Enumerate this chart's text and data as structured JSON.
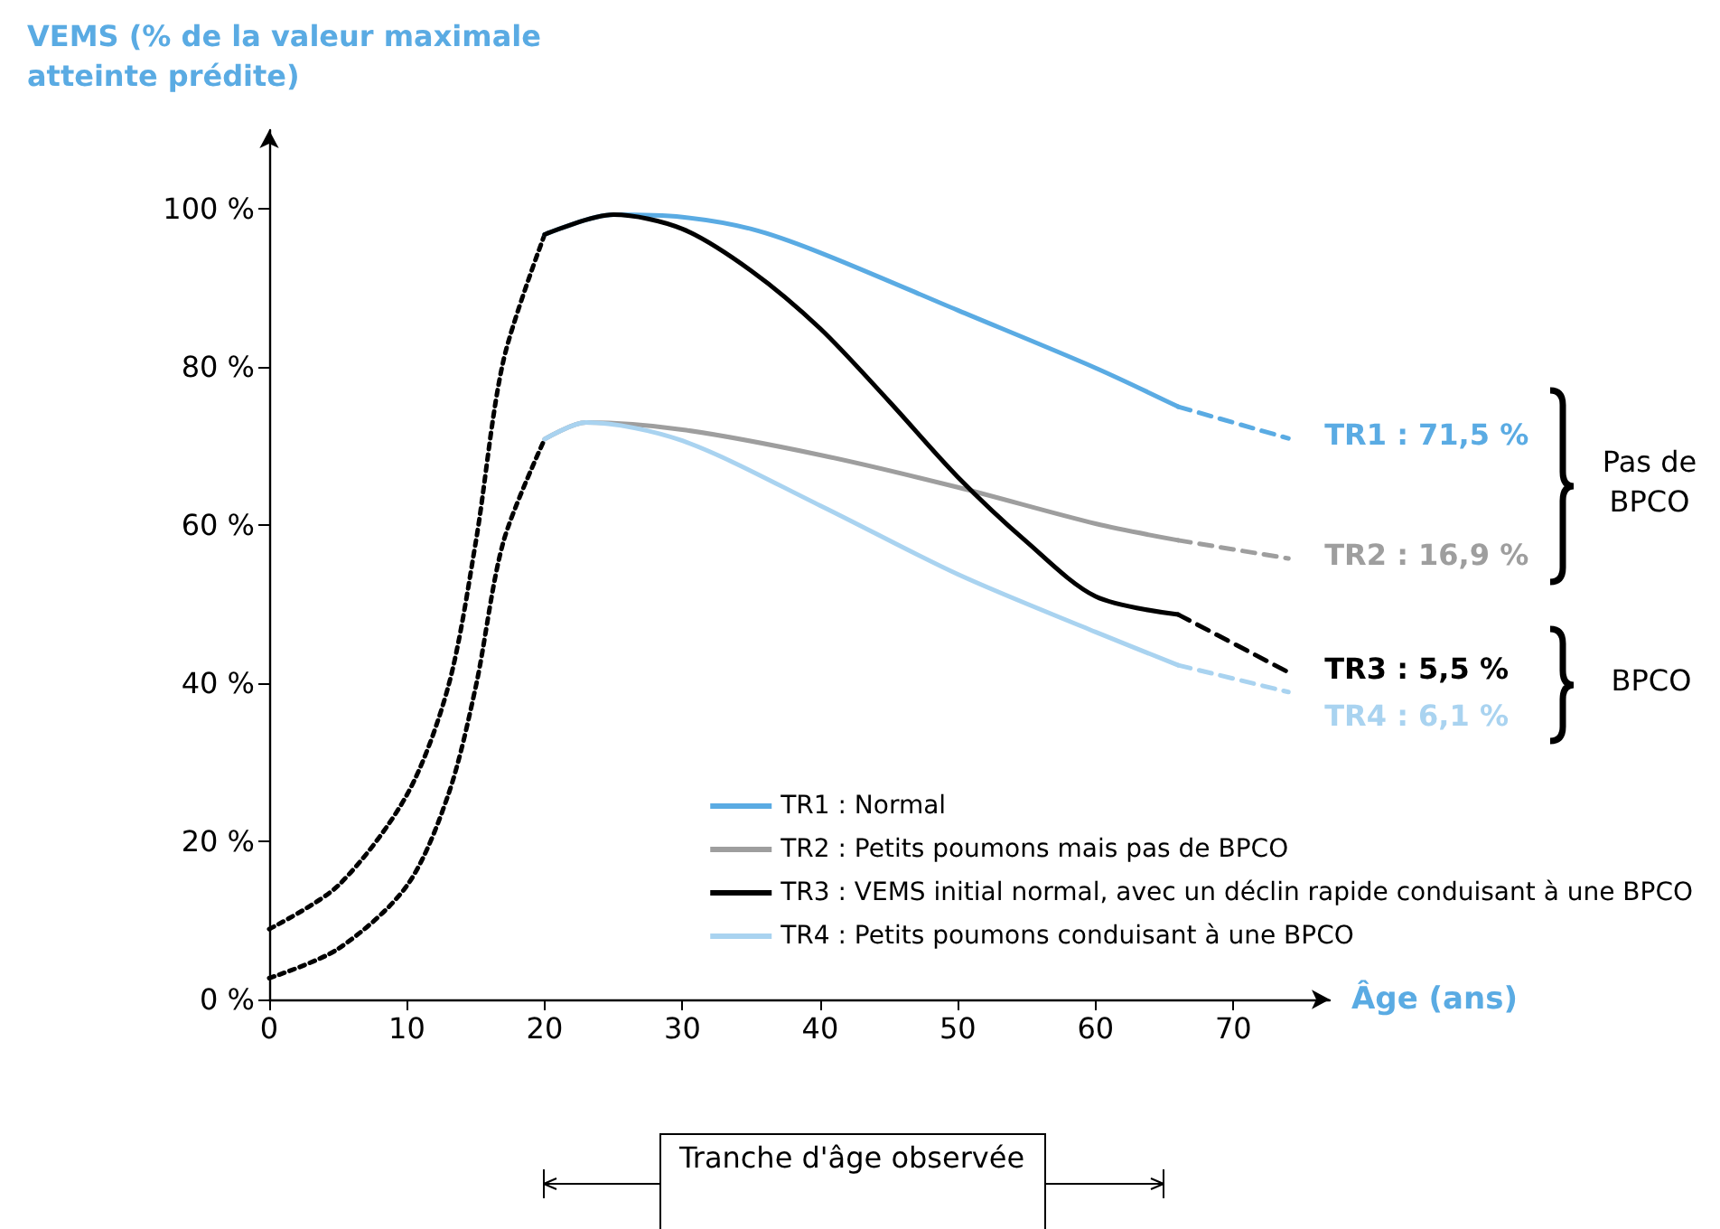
{
  "chart_data": {
    "type": "line",
    "ylabel": "VEMS (% de la valeur maximale atteinte prédite)",
    "xlabel": "Âge (ans)",
    "xlim": [
      0,
      77
    ],
    "xticks": [
      0,
      10,
      20,
      30,
      40,
      50,
      60,
      70
    ],
    "ylim": [
      0,
      110
    ],
    "yticks": [
      {
        "value": 0,
        "label": "0 %"
      },
      {
        "value": 20,
        "label": "20 %"
      },
      {
        "value": 40,
        "label": "40 %"
      },
      {
        "value": 60,
        "label": "60 %"
      },
      {
        "value": 80,
        "label": "80 %"
      },
      {
        "value": 100,
        "label": "100 %"
      }
    ],
    "grid": false,
    "marker": "none",
    "legend": "bottom right",
    "series": [
      {
        "color": "#000000",
        "line_style": "dotted",
        "x": [
          0,
          5,
          10,
          13,
          15,
          17,
          20
        ],
        "values": [
          8.9,
          14.4,
          25.9,
          39.6,
          57.9,
          80.8,
          96.8
        ]
      },
      {
        "color": "#000000",
        "line_style": "dotted",
        "x": [
          0,
          5,
          10,
          13,
          15,
          17,
          20
        ],
        "values": [
          2.7,
          6.4,
          14.4,
          25.9,
          39.6,
          57.9,
          70.9
        ]
      },
      {
        "name": "TR1 : Normal",
        "color": "#5aabe3",
        "line_style": "solid",
        "x": [
          20,
          25,
          30,
          35,
          40,
          50,
          60,
          66
        ],
        "values": [
          96.8,
          99.3,
          99,
          97.5,
          94.5,
          87.2,
          79.9,
          75
        ]
      },
      {
        "name": "TR2 : Petits poumons mais pas de BPCO",
        "color": "#9e9e9e",
        "line_style": "solid",
        "x": [
          20,
          23,
          30,
          40,
          50,
          60,
          66
        ],
        "values": [
          70.9,
          73,
          72.1,
          68.9,
          64.8,
          60.2,
          58.1
        ]
      },
      {
        "name": "TR3 : VEMS initial normal, avec un déclin rapide conduisant à une BPCO",
        "color": "#000000",
        "line_style": "solid",
        "x": [
          20,
          25,
          30,
          35,
          40,
          45,
          50,
          55,
          60,
          66
        ],
        "values": [
          96.8,
          99.3,
          97.5,
          92.2,
          84.9,
          75.7,
          66.1,
          57.9,
          51,
          48.7
        ]
      },
      {
        "name": "TR4 : Petits poumons conduisant à une BPCO",
        "color": "#a9d3f0",
        "line_style": "solid",
        "x": [
          20,
          23,
          30,
          40,
          50,
          60,
          66
        ],
        "values": [
          70.9,
          73,
          70.7,
          62.5,
          53.8,
          46.5,
          42.3
        ]
      },
      {
        "color": "#5aabe3",
        "line_style": "dashed",
        "x": [
          66,
          74
        ],
        "values": [
          75,
          71
        ]
      },
      {
        "color": "#9e9e9e",
        "line_style": "dashed",
        "x": [
          66,
          74
        ],
        "values": [
          58.1,
          55.8
        ]
      },
      {
        "color": "#000000",
        "line_style": "dashed",
        "x": [
          66,
          74
        ],
        "values": [
          48.7,
          41.4
        ]
      },
      {
        "color": "#a9d3f0",
        "line_style": "dashed",
        "x": [
          66,
          74
        ],
        "values": [
          42.3,
          38.9
        ]
      }
    ],
    "annotations": [
      "Pas de BPCO",
      "BPCO",
      "Tranche d'âge observée",
      "TR1 : 71,5 %",
      "TR2 : 16,9 %",
      "TR3 : 5,5 %",
      "TR4 : 6,1 %"
    ]
  }
}
